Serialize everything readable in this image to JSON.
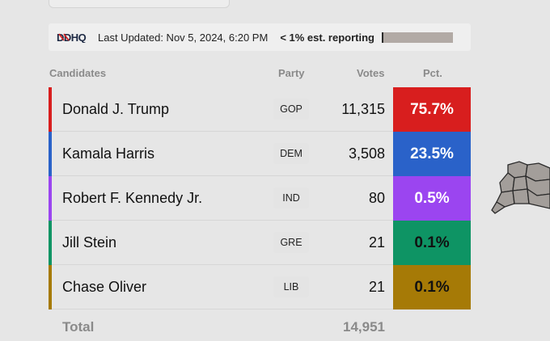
{
  "header": {
    "logo_text": "DDHQ",
    "last_updated": "Last Updated: Nov 5, 2024, 6:20 PM",
    "reporting": "< 1% est. reporting",
    "reporting_fraction": 0.01
  },
  "columns": {
    "candidates": "Candidates",
    "party": "Party",
    "votes": "Votes",
    "pct": "Pct."
  },
  "rows": [
    {
      "name": "Donald J. Trump",
      "party": "GOP",
      "votes": "11,315",
      "pct": "75.7%",
      "color": "#d81e1e",
      "text_color": "#ffffff"
    },
    {
      "name": "Kamala Harris",
      "party": "DEM",
      "votes": "3,508",
      "pct": "23.5%",
      "color": "#2a62c9",
      "text_color": "#ffffff"
    },
    {
      "name": "Robert F. Kennedy Jr.",
      "party": "IND",
      "votes": "80",
      "pct": "0.5%",
      "color": "#9b45f0",
      "text_color": "#ffffff"
    },
    {
      "name": "Jill Stein",
      "party": "GRE",
      "votes": "21",
      "pct": "0.1%",
      "color": "#0e9464",
      "text_color": "#111111"
    },
    {
      "name": "Chase Oliver",
      "party": "LIB",
      "votes": "21",
      "pct": "0.1%",
      "color": "#a67a06",
      "text_color": "#111111"
    }
  ],
  "total": {
    "label": "Total",
    "votes": "14,951"
  }
}
